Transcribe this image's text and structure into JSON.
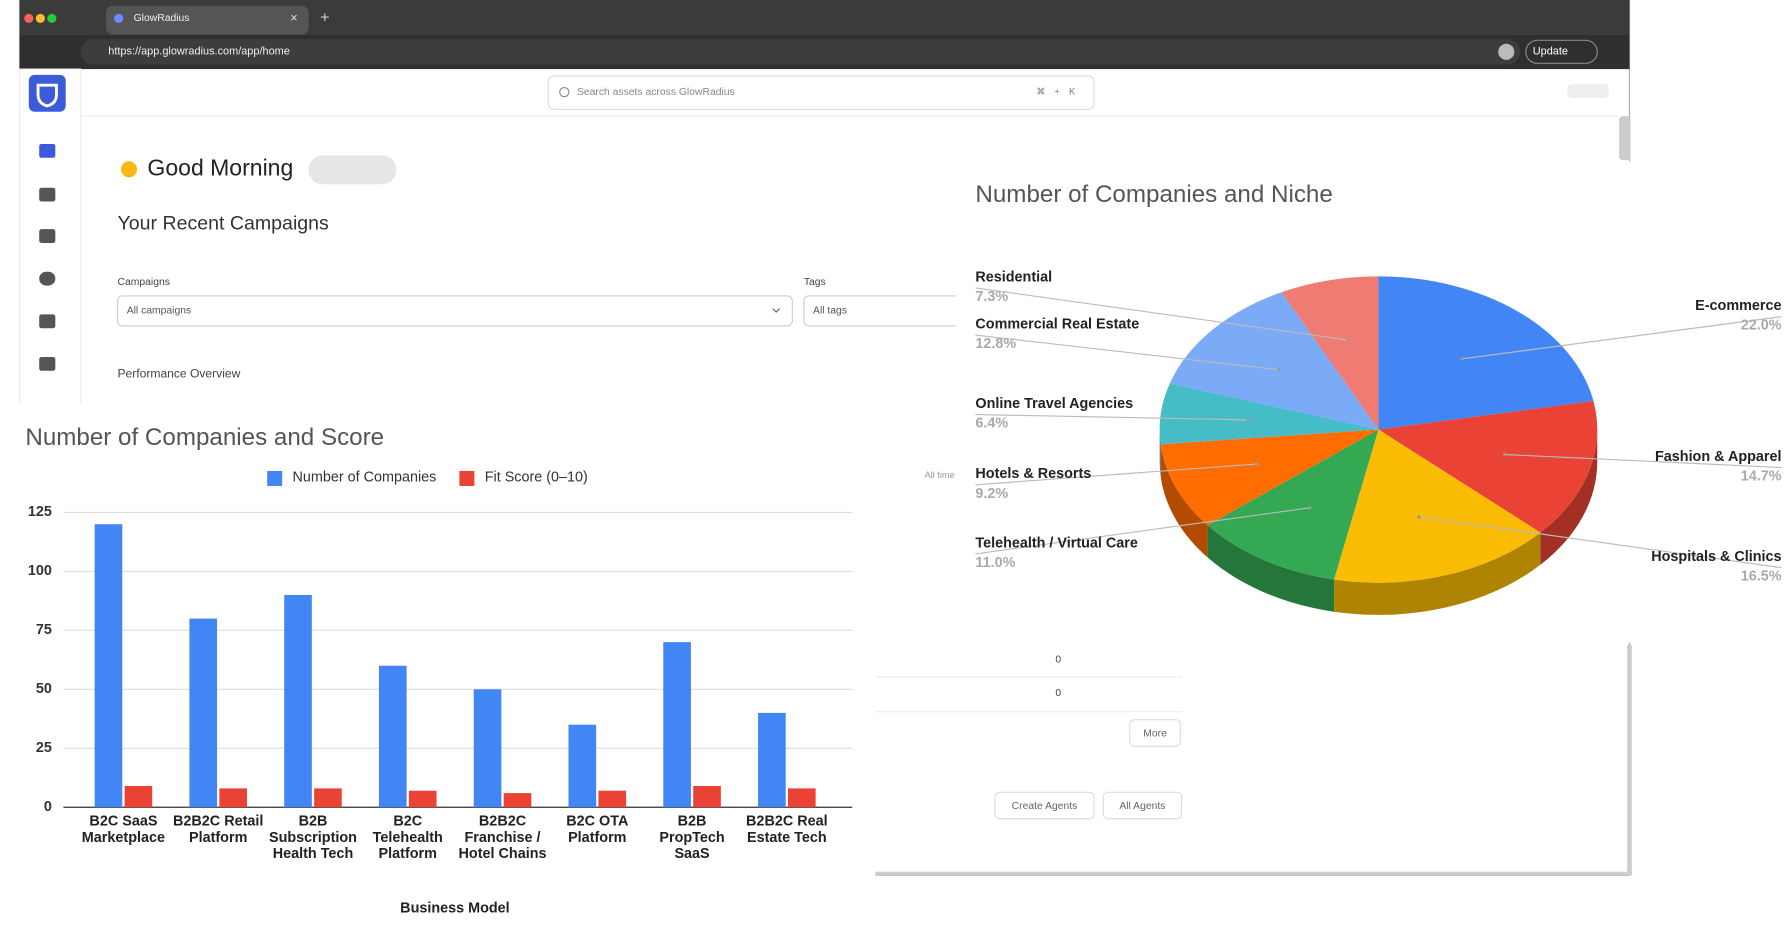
{
  "browser": {
    "tab_title": "GlowRadius",
    "url": "https://app.glowradius.com/app/home",
    "update_button": "Update"
  },
  "app": {
    "search_placeholder": "Search assets across GlowRadius",
    "search_shortcut": [
      "⌘",
      "+",
      "K"
    ],
    "greeting": "Good Morning",
    "section_title": "Your Recent Campaigns",
    "filters": [
      {
        "label": "Campaigns",
        "value": "All campaigns"
      },
      {
        "label": "Tags",
        "value": "All tags"
      }
    ],
    "performance_title": "Performance Overview",
    "time_range": "All time",
    "table_values": [
      0,
      0
    ],
    "buttons": [
      "More",
      "Create Agents",
      "All Agents"
    ]
  },
  "chart_data": [
    {
      "type": "bar",
      "title": "Number of Companies and Score",
      "categories": [
        "B2C SaaS Marketplace",
        "B2B2C Retail Platform",
        "B2B Subscription Health Tech",
        "B2C Telehealth Platform",
        "B2B2C Franchise / Hotel Chains",
        "B2C OTA Platform",
        "B2B PropTech SaaS",
        "B2B2C Real Estate Tech"
      ],
      "series": [
        {
          "name": "Number of Companies",
          "color": "#4285f4",
          "values": [
            120,
            80,
            90,
            60,
            50,
            35,
            70,
            40
          ]
        },
        {
          "name": "Fit Score (0–10)",
          "color": "#ea4335",
          "values": [
            9,
            8,
            8,
            7,
            6,
            7,
            9,
            8
          ]
        }
      ],
      "ylim": [
        0,
        125
      ],
      "yticks": [
        0,
        25,
        50,
        75,
        100,
        125
      ],
      "grid": true,
      "legend": "top",
      "x_label": "Business Model"
    },
    {
      "type": "pie",
      "title": "Number of Companies and Niche",
      "style": "3d",
      "categories": [
        "E-commerce",
        "Fashion & Apparel",
        "Hospitals & Clinics",
        "Telehealth / Virtual Care",
        "Hotels & Resorts",
        "Online Travel Agencies",
        "Commercial Real Estate",
        "Residential"
      ],
      "values": [
        22.0,
        14.7,
        16.5,
        11.0,
        9.2,
        6.4,
        12.8,
        7.3
      ],
      "value_labels": [
        "22.0%",
        "14.7%",
        "16.5%",
        "11.0%",
        "9.2%",
        "6.4%",
        "12.8%",
        "7.3%"
      ],
      "colors": [
        "#4285f4",
        "#ea4335",
        "#fbbc04",
        "#34a853",
        "#ff6d01",
        "#46bdc6",
        "#7baaf7",
        "#f07b72"
      ]
    }
  ]
}
